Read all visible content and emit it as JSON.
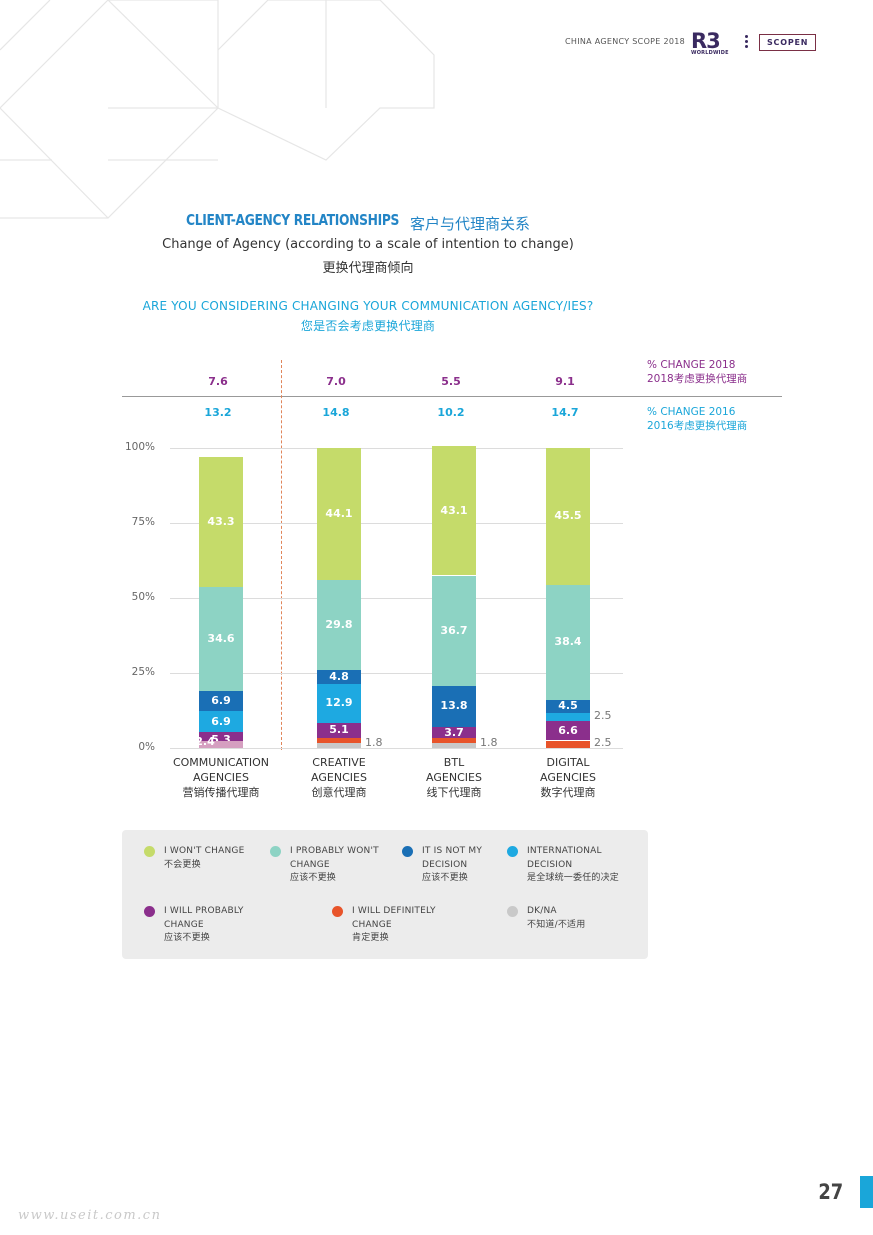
{
  "header": {
    "report_title": "CHINA AGENCY SCOPE 2018",
    "logo_r3": "R3",
    "logo_worldwide": "WORLDWIDE",
    "partner_logo": "SCOPEN"
  },
  "title_en": "CLIENT-AGENCY RELATIONSHIPS",
  "title_cn": "客户与代理商关系",
  "subtitle_en": "Change of Agency (according to a scale of intention to change)",
  "subtitle_cn": "更换代理商倾向",
  "question_en": "ARE YOU CONSIDERING CHANGING YOUR COMMUNICATION AGENCY/IES?",
  "question_cn": "您是否会考虑更换代理商",
  "change_2018": {
    "label_en": "% CHANGE 2018",
    "label_cn": "2018考虑更换代理商",
    "values": [
      "7.6",
      "7.0",
      "5.5",
      "9.1"
    ],
    "color": "#8b2f8c"
  },
  "change_2016": {
    "label_en": "% CHANGE 2016",
    "label_cn": "2016考虑更换代理商",
    "values": [
      "13.2",
      "14.8",
      "10.2",
      "14.7"
    ],
    "color": "#1aa6d9"
  },
  "chart_data": {
    "type": "bar",
    "stacked": true,
    "categories": [
      {
        "en": [
          "COMMUNICATION",
          "AGENCIES"
        ],
        "cn": "营销传播代理商"
      },
      {
        "en": [
          "CREATIVE",
          "AGENCIES"
        ],
        "cn": "创意代理商"
      },
      {
        "en": [
          "BTL",
          "AGENCIES"
        ],
        "cn": "线下代理商"
      },
      {
        "en": [
          "DIGITAL",
          "AGENCIES"
        ],
        "cn": "数字代理商"
      }
    ],
    "ylim": [
      0,
      100
    ],
    "yticks": [
      "0%",
      "25%",
      "50%",
      "75%",
      "100%"
    ],
    "grid": true,
    "series": [
      {
        "key": "dk",
        "color": "#c9c9c9",
        "values": [
          0,
          1.8,
          1.8,
          0
        ],
        "labels": [
          "",
          "1.8",
          "1.8",
          ""
        ]
      },
      {
        "key": "definitely",
        "color": "#e8542a",
        "values": [
          0,
          1.5,
          1.5,
          2.5
        ],
        "labels": [
          "",
          "",
          "",
          "2.5"
        ]
      },
      {
        "key": "probably",
        "color": "#8b2f8c",
        "values": [
          5.3,
          5.1,
          3.7,
          6.6
        ],
        "labels": [
          "5.3",
          "5.1",
          "3.7",
          "6.6"
        ]
      },
      {
        "key": "intl",
        "color": "#1ea9e1",
        "values": [
          6.9,
          12.9,
          0,
          2.5
        ],
        "labels": [
          "6.9",
          "12.9",
          "",
          "2.5"
        ]
      },
      {
        "key": "notmine",
        "color": "#1a6fb5",
        "values": [
          6.9,
          4.8,
          13.8,
          4.5
        ],
        "labels": [
          "6.9",
          "4.8",
          "13.8",
          "4.5"
        ]
      },
      {
        "key": "probnot",
        "color": "#8dd3c4",
        "values": [
          34.6,
          29.8,
          36.7,
          38.4
        ],
        "labels": [
          "34.6",
          "29.8",
          "36.7",
          "38.4"
        ]
      },
      {
        "key": "wont",
        "color": "#c5db6a",
        "values": [
          43.3,
          44.1,
          43.1,
          45.5
        ],
        "labels": [
          "43.3",
          "44.1",
          "43.1",
          "45.5"
        ]
      }
    ],
    "extra_segment": {
      "category_index": 0,
      "color": "#d59fc0",
      "value": 2.4,
      "label": "2.4"
    }
  },
  "legend": [
    {
      "color": "#c5db6a",
      "en": [
        "I WON'T CHANGE"
      ],
      "cn": "不会更换"
    },
    {
      "color": "#8dd3c4",
      "en": [
        "I PROBABLY WON'T",
        "CHANGE"
      ],
      "cn": "应该不更换"
    },
    {
      "color": "#1a6fb5",
      "en": [
        "IT IS NOT MY",
        "DECISION"
      ],
      "cn": "应该不更换"
    },
    {
      "color": "#1ea9e1",
      "en": [
        "INTERNATIONAL",
        "DECISION"
      ],
      "cn": "是全球统一委任的决定"
    },
    {
      "color": "#8b2f8c",
      "en": [
        "I WILL PROBABLY",
        "CHANGE"
      ],
      "cn": "应该不更换"
    },
    {
      "color": "#e8542a",
      "en": [
        "I WILL DEFINITELY",
        "CHANGE"
      ],
      "cn": "肯定更换"
    },
    {
      "color": "#c9c9c9",
      "en": [
        "DK/NA"
      ],
      "cn": "不知道/不适用"
    }
  ],
  "page_number": "27",
  "watermark": "www.useit.com.cn"
}
